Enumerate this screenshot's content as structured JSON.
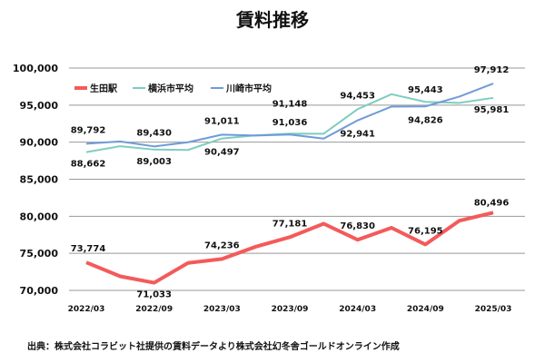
{
  "chart_data": {
    "type": "line",
    "title": "賃料推移",
    "x": [
      "2022/03",
      "2022/06",
      "2022/09",
      "2022/12",
      "2023/03",
      "2023/06",
      "2023/09",
      "2023/12",
      "2024/03",
      "2024/06",
      "2024/09",
      "2024/12",
      "2025/03"
    ],
    "xtick_labels": [
      "2022/03",
      "2022/09",
      "2023/03",
      "2023/09",
      "2024/03",
      "2024/09",
      "2025/03"
    ],
    "ytick_labels": [
      "70,000",
      "75,000",
      "80,000",
      "85,000",
      "90,000",
      "95,000",
      "100,000"
    ],
    "ylim": [
      70000,
      100000
    ],
    "grid": "horizontal",
    "legend": "top-left",
    "series": [
      {
        "name": "生田駅",
        "color": "#f45a5a",
        "values": [
          73774,
          71900,
          71033,
          73700,
          74236,
          75900,
          77181,
          79000,
          76830,
          78450,
          76195,
          79400,
          80496
        ]
      },
      {
        "name": "横浜市平均",
        "color": "#7ecdc0",
        "values": [
          88662,
          89460,
          89003,
          88950,
          90497,
          90930,
          91148,
          91140,
          94453,
          96470,
          95443,
          95300,
          95981
        ]
      },
      {
        "name": "川崎市平均",
        "color": "#6f9bd8",
        "values": [
          89792,
          90100,
          89430,
          89990,
          91011,
          90900,
          91036,
          90480,
          92941,
          94800,
          94826,
          96150,
          97912
        ]
      }
    ],
    "data_labels": {
      "生田駅": [
        "73,774",
        "71,033",
        "74,236",
        "77,181",
        "76,830",
        "76,195",
        "80,496"
      ],
      "横浜市平均": [
        "88,662",
        "89,003",
        "90,497",
        "91,148",
        "94,453",
        "95,443",
        "95,981"
      ],
      "川崎市平均": [
        "89,792",
        "89,430",
        "91,011",
        "91,036",
        "92,941",
        "94,826",
        "97,912"
      ]
    }
  },
  "footnote": "出典：株式会社コラビット社提供の賃料データより株式会社幻冬舎ゴールドオンライン作成"
}
